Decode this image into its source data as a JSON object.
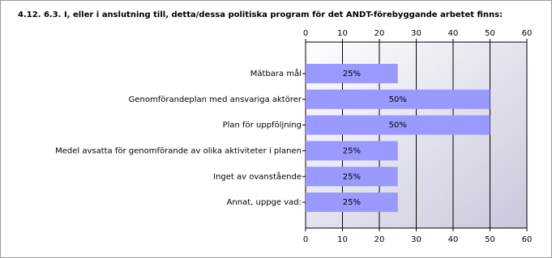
{
  "chart_data": {
    "type": "bar",
    "orientation": "horizontal",
    "title": "4.12. 6.3. I, eller i anslutning till, detta/dessa politiska program för det ANDT-förebyggande arbetet finns:",
    "categories": [
      "Mätbara mål",
      "Genomförandeplan med ansvariga aktörer",
      "Plan för uppföljning",
      "Medel avsatta för genomförande av olika aktiviteter i planen",
      "Inget av ovanstående",
      "Annat, uppge vad:"
    ],
    "values": [
      25,
      50,
      50,
      25,
      25,
      25
    ],
    "value_labels": [
      "25%",
      "50%",
      "50%",
      "25%",
      "25%",
      "25%"
    ],
    "color": "#9999ff",
    "xlim": [
      0,
      60
    ],
    "xticks": [
      0,
      10,
      20,
      30,
      40,
      50,
      60
    ],
    "grid": true
  }
}
